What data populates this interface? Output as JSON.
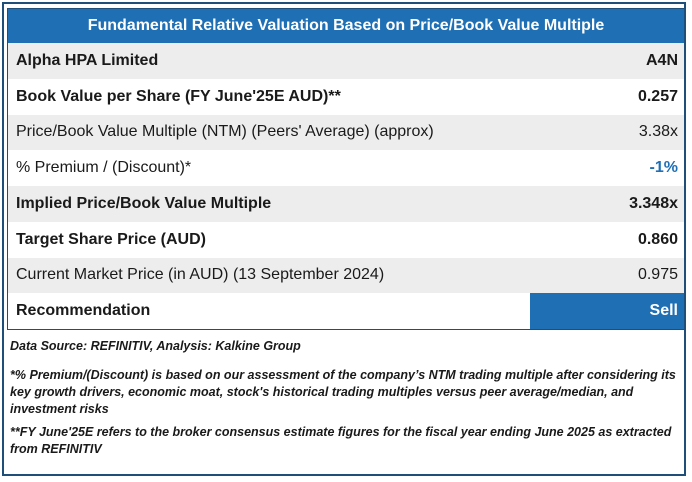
{
  "title": "Fundamental Relative Valuation Based on Price/Book Value Multiple",
  "rows": [
    {
      "label": "Alpha HPA Limited",
      "value": "A4N"
    },
    {
      "label": "Book Value per Share (FY June'25E AUD)**",
      "value": "0.257"
    },
    {
      "label": "Price/Book Value Multiple (NTM)  (Peers' Average) (approx)",
      "value": "3.38x"
    },
    {
      "label": "% Premium / (Discount)*",
      "value": "-1%"
    },
    {
      "label": "Implied Price/Book Value Multiple",
      "value": "3.348x"
    },
    {
      "label": "Target Share Price (AUD)",
      "value": "0.860"
    },
    {
      "label": "Current Market Price (in AUD) (13 September 2024)",
      "value": "0.975"
    },
    {
      "label": "Recommendation",
      "value": "Sell"
    }
  ],
  "notes": {
    "source": "Data Source: REFINITIV, Analysis: Kalkine Group",
    "premium_note": "*% Premium/(Discount) is based on our assessment of the company’s NTM trading multiple after considering its key growth drivers, economic moat, stock's historical trading multiples versus peer average/median, and investment risks",
    "fy_note": "**FY June'25E refers to the broker consensus estimate figures for the fiscal year ending June 2025  as extracted from REFINITIV"
  },
  "colors": {
    "header_blue": "#1f6fb5",
    "border_navy": "#1f4e79",
    "row_shade": "#ededed"
  }
}
